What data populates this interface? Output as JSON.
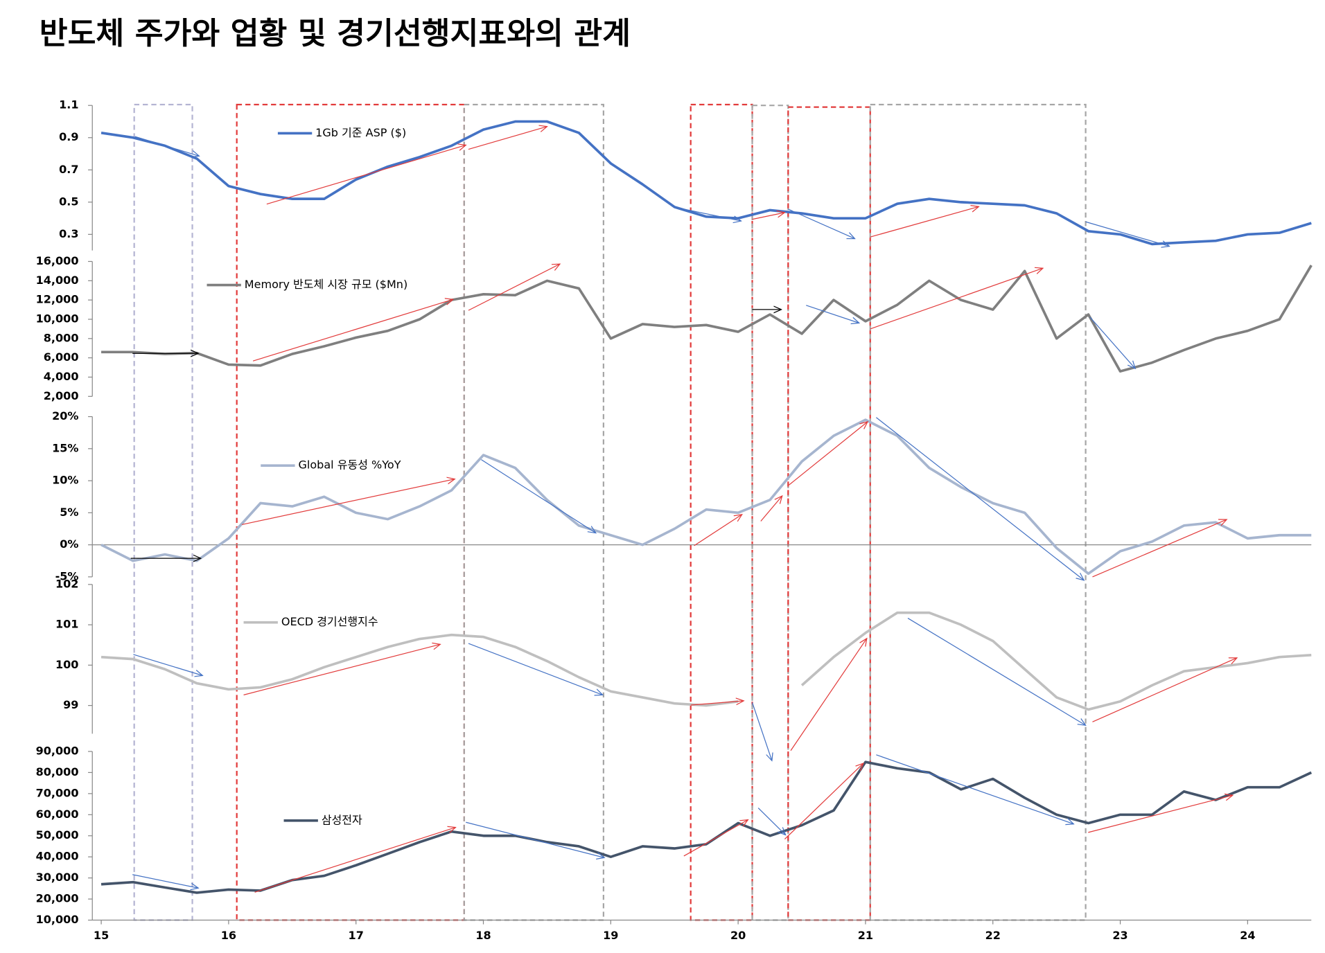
{
  "title": "반도체 주가와 업황 및 경기선행지표와의 관계",
  "chart_data": [
    {
      "type": "line",
      "x": [
        15,
        15.25,
        15.5,
        15.75,
        16,
        16.25,
        16.5,
        16.75,
        17,
        17.25,
        17.5,
        17.75,
        18,
        18.25,
        18.5,
        18.75,
        19,
        19.25,
        19.5,
        19.75,
        20,
        20.25,
        20.5,
        20.75,
        21,
        21.25,
        21.5,
        21.75,
        22,
        22.25,
        22.5,
        22.75,
        23,
        23.25,
        23.5,
        23.75,
        24,
        24.25,
        24.5
      ],
      "xlim": [
        14.93,
        24.5
      ],
      "series": [
        {
          "name": "1Gb 기준 ASP ($)",
          "color": "#4472c4",
          "values": [
            0.93,
            0.9,
            0.85,
            0.77,
            0.6,
            0.55,
            0.52,
            0.52,
            0.64,
            0.72,
            0.78,
            0.85,
            0.95,
            1.0,
            1.0,
            0.93,
            0.74,
            0.61,
            0.47,
            0.41,
            0.4,
            0.45,
            0.43,
            0.4,
            0.4,
            0.49,
            0.52,
            0.5,
            0.49,
            0.48,
            0.43,
            0.32,
            0.3,
            0.24,
            0.25,
            0.26,
            0.3,
            0.31,
            0.37
          ]
        }
      ],
      "ylim": [
        0.2,
        1.1
      ],
      "yticks": [
        0.3,
        0.5,
        0.7,
        0.9,
        1.1
      ]
    },
    {
      "type": "line",
      "x": [
        15,
        15.25,
        15.5,
        15.75,
        16,
        16.25,
        16.5,
        16.75,
        17,
        17.25,
        17.5,
        17.75,
        18,
        18.25,
        18.5,
        18.75,
        19,
        19.25,
        19.5,
        19.75,
        20,
        20.25,
        20.5,
        20.75,
        21,
        21.25,
        21.5,
        21.75,
        22,
        22.25,
        22.5,
        22.75,
        23,
        23.25,
        23.5,
        23.75,
        24,
        24.25,
        24.5
      ],
      "xlim": [
        14.93,
        24.5
      ],
      "series": [
        {
          "name": "Memory 반도체 시장 규모 ($Mn)",
          "color": "#7f7f7f",
          "values": [
            6600,
            6600,
            6400,
            6500,
            5300,
            5200,
            6400,
            7200,
            8100,
            8800,
            10000,
            12000,
            12600,
            12500,
            14000,
            13200,
            8000,
            9500,
            9200,
            9400,
            8700,
            10500,
            8500,
            12000,
            9800,
            11500,
            14000,
            12000,
            11000,
            15000,
            8000,
            10500,
            4600,
            5500,
            6800,
            8000,
            8800,
            10000,
            15600
          ]
        }
      ],
      "ylim": [
        2000,
        16000
      ],
      "yticks": [
        {
          "value": 2000,
          "label": "2,000"
        },
        {
          "value": 4000,
          "label": "4,000"
        },
        {
          "value": 6000,
          "label": "6,000"
        },
        {
          "value": 8000,
          "label": "8,000"
        },
        {
          "value": 10000,
          "label": "10,000"
        },
        {
          "value": 12000,
          "label": "12,000"
        },
        {
          "value": 14000,
          "label": "14,000"
        },
        {
          "value": 16000,
          "label": "16,000"
        }
      ]
    },
    {
      "type": "line",
      "x": [
        15,
        15.25,
        15.5,
        15.75,
        16,
        16.25,
        16.5,
        16.75,
        17,
        17.25,
        17.5,
        17.75,
        18,
        18.25,
        18.5,
        18.75,
        19,
        19.25,
        19.5,
        19.75,
        20,
        20.25,
        20.5,
        20.75,
        21,
        21.25,
        21.5,
        21.75,
        22,
        22.25,
        22.5,
        22.75,
        23,
        23.25,
        23.5,
        23.75,
        24,
        24.25,
        24.5
      ],
      "xlim": [
        14.93,
        24.5
      ],
      "series": [
        {
          "name": "Global 유동성 %YoY",
          "color": "#a6b5cf",
          "values": [
            0,
            -2.5,
            -1.5,
            -2.5,
            1,
            6.5,
            6,
            7.5,
            5,
            4,
            6,
            8.5,
            14,
            12,
            7,
            3,
            1.5,
            0,
            2.5,
            5.5,
            5,
            7,
            13,
            17,
            19.5,
            17,
            12,
            9,
            6.5,
            5,
            -0.5,
            -4.5,
            -1,
            0.5,
            3,
            3.5,
            1,
            1.5,
            1.5
          ]
        }
      ],
      "ylim": [
        -5,
        20
      ],
      "yticks": [
        {
          "value": -5,
          "label": "-5%"
        },
        {
          "value": 0,
          "label": "0%"
        },
        {
          "value": 5,
          "label": "5%"
        },
        {
          "value": 10,
          "label": "10%"
        },
        {
          "value": 15,
          "label": "15%"
        },
        {
          "value": 20,
          "label": "20%"
        }
      ]
    },
    {
      "type": "line",
      "x": [
        15,
        15.25,
        15.5,
        15.75,
        16,
        16.25,
        16.5,
        16.75,
        17,
        17.25,
        17.5,
        17.75,
        18,
        18.25,
        18.5,
        18.75,
        19,
        19.25,
        19.5,
        19.75,
        20,
        20.25,
        20.5,
        20.75,
        21,
        21.25,
        21.5,
        21.75,
        22,
        22.25,
        22.5,
        22.75,
        23,
        23.25,
        23.5,
        23.75,
        24,
        24.25,
        24.5
      ],
      "xlim": [
        14.93,
        24.5
      ],
      "series": [
        {
          "name": "OECD 경기선행지수",
          "color": "#bfbfbf",
          "values": [
            100.2,
            100.15,
            99.9,
            99.55,
            99.4,
            99.45,
            99.65,
            99.95,
            100.2,
            100.45,
            100.65,
            100.75,
            100.7,
            100.45,
            100.1,
            99.7,
            99.35,
            99.2,
            99.05,
            99.0,
            99.1,
            null,
            99.5,
            100.2,
            100.8,
            101.3,
            101.3,
            101.0,
            100.6,
            99.9,
            99.2,
            98.9,
            99.1,
            99.5,
            99.85,
            99.95,
            100.05,
            100.2,
            100.25
          ]
        }
      ],
      "ylim": [
        98.3,
        102
      ],
      "yticks": [
        99,
        100,
        101,
        102
      ]
    },
    {
      "type": "line",
      "x": [
        15,
        15.25,
        15.5,
        15.75,
        16,
        16.25,
        16.5,
        16.75,
        17,
        17.25,
        17.5,
        17.75,
        18,
        18.25,
        18.5,
        18.75,
        19,
        19.25,
        19.5,
        19.75,
        20,
        20.25,
        20.5,
        20.75,
        21,
        21.25,
        21.5,
        21.75,
        22,
        22.25,
        22.5,
        22.75,
        23,
        23.25,
        23.5,
        23.75,
        24,
        24.25,
        24.5
      ],
      "xlim": [
        14.93,
        24.5
      ],
      "xticks": [
        15,
        16,
        17,
        18,
        19,
        20,
        21,
        22,
        23,
        24
      ],
      "series": [
        {
          "name": "삼성전자",
          "color": "#44546a",
          "values": [
            27000,
            28000,
            25500,
            23000,
            24500,
            24000,
            29000,
            31000,
            36000,
            41500,
            47000,
            52000,
            50000,
            50000,
            47000,
            45000,
            40000,
            45000,
            44000,
            46000,
            56000,
            50000,
            55000,
            62000,
            85000,
            82000,
            80000,
            72000,
            77000,
            68000,
            60000,
            56000,
            60000,
            60000,
            71000,
            67000,
            73000,
            73000,
            80000
          ]
        }
      ],
      "ylim": [
        10000,
        90000
      ],
      "yticks": [
        {
          "value": 10000,
          "label": "10,000"
        },
        {
          "value": 20000,
          "label": "20,000"
        },
        {
          "value": 30000,
          "label": "30,000"
        },
        {
          "value": 40000,
          "label": "40,000"
        },
        {
          "value": 50000,
          "label": "50,000"
        },
        {
          "value": 60000,
          "label": "60,000"
        },
        {
          "value": 70000,
          "label": "70,000"
        },
        {
          "value": 80000,
          "label": "80,000"
        },
        {
          "value": 90000,
          "label": "90,000"
        }
      ]
    }
  ]
}
